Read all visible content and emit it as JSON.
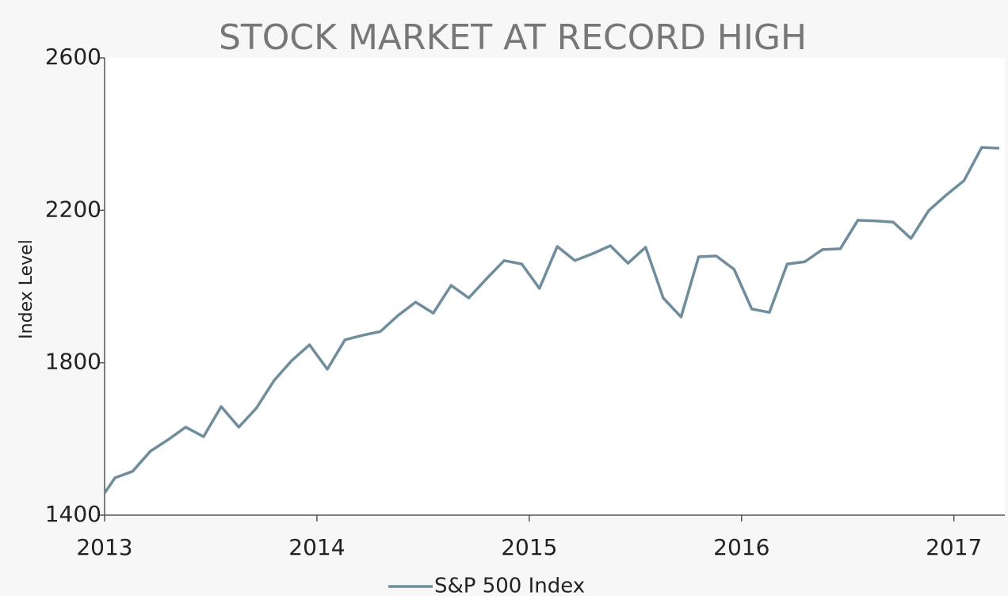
{
  "chart_data": {
    "type": "line",
    "title": "STOCK MARKET AT RECORD HIGH",
    "y_label": "Index Level",
    "x": [
      2013.0,
      2013.049,
      2013.132,
      2013.216,
      2013.299,
      2013.382,
      2013.466,
      2013.549,
      2013.632,
      2013.715,
      2013.799,
      2013.882,
      2013.965,
      2014.049,
      2014.132,
      2014.215,
      2014.299,
      2014.382,
      2014.465,
      2014.548,
      2014.632,
      2014.715,
      2014.798,
      2014.882,
      2014.965,
      2015.048,
      2015.132,
      2015.215,
      2015.298,
      2015.382,
      2015.465,
      2015.548,
      2015.631,
      2015.715,
      2015.798,
      2015.881,
      2015.965,
      2016.048,
      2016.131,
      2016.215,
      2016.298,
      2016.381,
      2016.465,
      2016.548,
      2016.631,
      2016.714,
      2016.798,
      2016.881,
      2016.964,
      2017.048,
      2017.131,
      2017.214
    ],
    "series": [
      {
        "name": "S&P 500 Index",
        "color": "#6f8d9c",
        "values": [
          1458,
          1498,
          1515,
          1568,
          1598,
          1631,
          1606,
          1685,
          1631,
          1681,
          1754,
          1806,
          1847,
          1783,
          1860,
          1872,
          1882,
          1924,
          1959,
          1930,
          2003,
          1970,
          2020,
          2068,
          2059,
          1995,
          2105,
          2068,
          2086,
          2107,
          2061,
          2103,
          1970,
          1920,
          2078,
          2080,
          2045,
          1941,
          1932,
          2059,
          2065,
          2097,
          2099,
          2174,
          2172,
          2169,
          2126,
          2199,
          2240,
          2278,
          2365,
          2363
        ]
      }
    ],
    "xlim": [
      2013,
      2017.24
    ],
    "xticks": [
      2013,
      2014,
      2015,
      2016,
      2017
    ],
    "ylim": [
      1400,
      2600
    ],
    "yticks": [
      1400,
      1800,
      2200,
      2600
    ],
    "grid": false,
    "legend": "bottom"
  }
}
